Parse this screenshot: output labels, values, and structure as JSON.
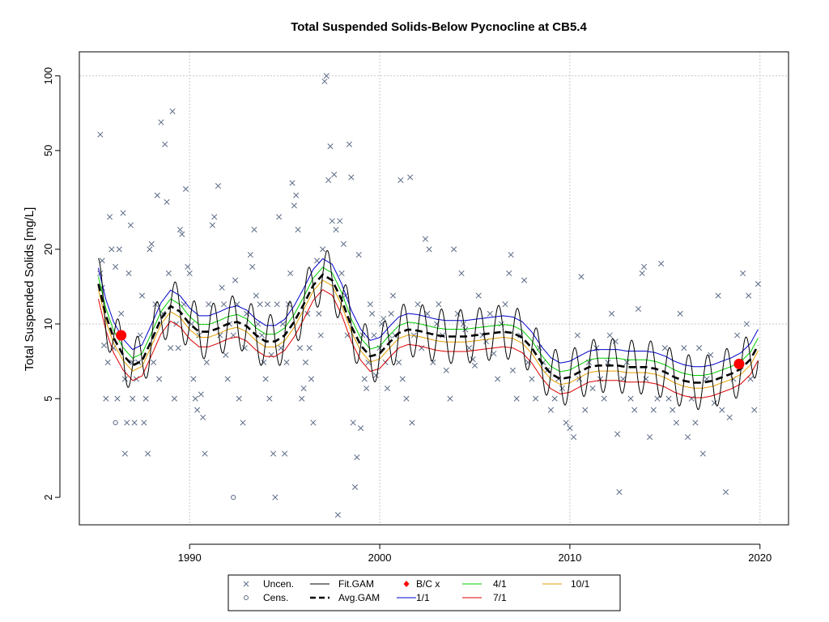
{
  "chart_data": {
    "type": "scatter",
    "title": "Total Suspended Solids-Below Pycnocline at CB5.4",
    "xlabel": "",
    "ylabel": "Total Suspended Solids [mg/L]",
    "x_ticks": [
      1990,
      2000,
      2010,
      2020
    ],
    "y_ticks": [
      2,
      5,
      10,
      20,
      50,
      100
    ],
    "xlim": [
      1984.2,
      2021.5
    ],
    "ylim": [
      1.55,
      125
    ],
    "y_scale": "log",
    "grid": true,
    "legend_position": "bottom",
    "legend": [
      {
        "key": "uncen",
        "label": "Uncen.",
        "symbol": "x",
        "color": "#5b6b86"
      },
      {
        "key": "cens",
        "label": "Cens.",
        "symbol": "o",
        "color": "#5b6b86"
      },
      {
        "key": "fit",
        "label": "Fit.GAM",
        "symbol": "line",
        "color": "#000000"
      },
      {
        "key": "avg",
        "label": "Avg.GAM",
        "symbol": "dash",
        "color": "#000000"
      },
      {
        "key": "bc",
        "label": "B/C x",
        "symbol": "dot",
        "color": "#ff0000"
      },
      {
        "key": "p11",
        "label": "1/1",
        "symbol": "line",
        "color": "#0000cc"
      },
      {
        "key": "p41",
        "label": "4/1",
        "symbol": "line",
        "color": "#00cc00"
      },
      {
        "key": "p71",
        "label": "7/1",
        "symbol": "line",
        "color": "#dd0000"
      },
      {
        "key": "p101",
        "label": "10/1",
        "symbol": "line",
        "color": "#e69f00"
      }
    ],
    "avg_gam": {
      "x": [
        1985.2,
        1985.6,
        1986.0,
        1986.5,
        1987.0,
        1987.5,
        1988.0,
        1988.5,
        1989.0,
        1989.5,
        1990.0,
        1990.5,
        1991.0,
        1991.5,
        1992.0,
        1992.5,
        1993.0,
        1993.5,
        1994.0,
        1994.5,
        1995.0,
        1995.5,
        1996.0,
        1996.5,
        1997.0,
        1997.5,
        1998.0,
        1998.5,
        1999.0,
        1999.5,
        2000.0,
        2000.5,
        2001.0,
        2001.5,
        2002.0,
        2002.5,
        2003.0,
        2003.5,
        2004.0,
        2004.5,
        2005.0,
        2005.5,
        2006.0,
        2006.5,
        2007.0,
        2007.5,
        2008.0,
        2008.5,
        2009.0,
        2009.5,
        2010.0,
        2010.5,
        2011.0,
        2011.5,
        2012.0,
        2012.5,
        2013.0,
        2013.5,
        2014.0,
        2014.5,
        2015.0,
        2015.5,
        2016.0,
        2016.5,
        2017.0,
        2017.5,
        2018.0,
        2018.5,
        2019.0,
        2019.5,
        2019.9
      ],
      "y": [
        14.5,
        10.8,
        8.8,
        7.5,
        6.8,
        7.1,
        8.6,
        10.5,
        11.8,
        11.2,
        10.0,
        9.3,
        9.3,
        9.6,
        10.0,
        10.2,
        9.8,
        9.0,
        8.5,
        8.5,
        9.0,
        10.2,
        12.0,
        14.3,
        15.8,
        15.0,
        12.5,
        9.8,
        8.2,
        7.4,
        7.6,
        8.4,
        9.2,
        9.5,
        9.4,
        9.2,
        9.0,
        8.9,
        8.9,
        8.9,
        9.0,
        9.1,
        9.2,
        9.3,
        9.2,
        8.8,
        8.0,
        7.0,
        6.3,
        6.0,
        6.1,
        6.4,
        6.7,
        6.8,
        6.8,
        6.8,
        6.7,
        6.7,
        6.7,
        6.6,
        6.4,
        6.1,
        5.9,
        5.8,
        5.8,
        5.9,
        6.1,
        6.3,
        6.6,
        7.2,
        8.2
      ]
    },
    "band_factors": {
      "1/1": 1.16,
      "4/1": 1.07,
      "10/1": 0.95,
      "7/1": 0.87
    },
    "fit_gam_seasonal_amplitude": 0.25,
    "bc_x": [
      [
        1986.4,
        9.0
      ],
      [
        2018.9,
        6.9
      ]
    ],
    "cens": [
      [
        1986.1,
        4.0
      ],
      [
        1992.3,
        2.0
      ]
    ],
    "uncen": [
      [
        1985.3,
        58
      ],
      [
        1985.3,
        16
      ],
      [
        1985.4,
        18
      ],
      [
        1985.4,
        14
      ],
      [
        1985.5,
        8.2
      ],
      [
        1985.6,
        5
      ],
      [
        1985.7,
        7
      ],
      [
        1985.8,
        27
      ],
      [
        1985.9,
        20
      ],
      [
        1986.0,
        8
      ],
      [
        1986.1,
        17
      ],
      [
        1986.2,
        5
      ],
      [
        1986.3,
        20
      ],
      [
        1986.4,
        11
      ],
      [
        1986.5,
        28
      ],
      [
        1986.6,
        6
      ],
      [
        1986.6,
        3
      ],
      [
        1986.7,
        4
      ],
      [
        1986.8,
        16
      ],
      [
        1986.9,
        25
      ],
      [
        1987.0,
        5
      ],
      [
        1987.0,
        7
      ],
      [
        1987.1,
        4
      ],
      [
        1987.2,
        6
      ],
      [
        1987.3,
        7
      ],
      [
        1987.4,
        9
      ],
      [
        1987.5,
        13
      ],
      [
        1987.6,
        4
      ],
      [
        1987.7,
        5
      ],
      [
        1987.8,
        3
      ],
      [
        1987.9,
        20
      ],
      [
        1988.0,
        21
      ],
      [
        1988.1,
        7
      ],
      [
        1988.2,
        12
      ],
      [
        1988.3,
        33
      ],
      [
        1988.4,
        6
      ],
      [
        1988.5,
        65
      ],
      [
        1988.6,
        11
      ],
      [
        1988.7,
        53
      ],
      [
        1988.8,
        31
      ],
      [
        1988.9,
        16
      ],
      [
        1989.0,
        8
      ],
      [
        1989.1,
        72
      ],
      [
        1989.2,
        5
      ],
      [
        1989.3,
        10
      ],
      [
        1989.4,
        8
      ],
      [
        1989.5,
        24
      ],
      [
        1989.6,
        23
      ],
      [
        1989.7,
        12
      ],
      [
        1989.8,
        35
      ],
      [
        1989.9,
        17
      ],
      [
        1990.0,
        16
      ],
      [
        1990.1,
        10
      ],
      [
        1990.2,
        6
      ],
      [
        1990.3,
        5
      ],
      [
        1990.4,
        4.5
      ],
      [
        1990.5,
        9
      ],
      [
        1990.6,
        5.2
      ],
      [
        1990.7,
        4.2
      ],
      [
        1990.8,
        3
      ],
      [
        1990.9,
        7
      ],
      [
        1991.0,
        12
      ],
      [
        1991.2,
        25
      ],
      [
        1991.3,
        27
      ],
      [
        1991.5,
        36
      ],
      [
        1991.6,
        9
      ],
      [
        1991.7,
        14
      ],
      [
        1991.8,
        12
      ],
      [
        1991.9,
        7.5
      ],
      [
        1992.0,
        6
      ],
      [
        1992.1,
        10
      ],
      [
        1992.3,
        9
      ],
      [
        1992.4,
        15
      ],
      [
        1992.5,
        12
      ],
      [
        1992.6,
        5
      ],
      [
        1992.8,
        4
      ],
      [
        1992.9,
        8
      ],
      [
        1993.0,
        11
      ],
      [
        1993.2,
        19
      ],
      [
        1993.3,
        17
      ],
      [
        1993.4,
        24
      ],
      [
        1993.5,
        13
      ],
      [
        1993.6,
        10
      ],
      [
        1993.7,
        12
      ],
      [
        1993.8,
        9
      ],
      [
        1993.9,
        7
      ],
      [
        1994.0,
        6
      ],
      [
        1994.1,
        12
      ],
      [
        1994.2,
        5
      ],
      [
        1994.3,
        7.5
      ],
      [
        1994.4,
        3
      ],
      [
        1994.5,
        2
      ],
      [
        1994.6,
        12
      ],
      [
        1994.7,
        27
      ],
      [
        1994.8,
        8
      ],
      [
        1994.9,
        10
      ],
      [
        1995.0,
        3
      ],
      [
        1995.1,
        7
      ],
      [
        1995.2,
        12
      ],
      [
        1995.3,
        16
      ],
      [
        1995.4,
        37
      ],
      [
        1995.5,
        30
      ],
      [
        1995.6,
        33
      ],
      [
        1995.7,
        24
      ],
      [
        1995.8,
        8
      ],
      [
        1995.9,
        5
      ],
      [
        1996.0,
        5.5
      ],
      [
        1996.1,
        7
      ],
      [
        1996.2,
        11
      ],
      [
        1996.3,
        8
      ],
      [
        1996.4,
        6
      ],
      [
        1996.5,
        4
      ],
      [
        1996.7,
        18
      ],
      [
        1996.8,
        11
      ],
      [
        1996.9,
        9
      ],
      [
        1997.0,
        20
      ],
      [
        1997.1,
        95
      ],
      [
        1997.2,
        100
      ],
      [
        1997.3,
        38
      ],
      [
        1997.4,
        52
      ],
      [
        1997.5,
        26
      ],
      [
        1997.6,
        40
      ],
      [
        1997.7,
        24
      ],
      [
        1997.8,
        1.7
      ],
      [
        1997.9,
        26
      ],
      [
        1998.0,
        16
      ],
      [
        1998.1,
        21
      ],
      [
        1998.2,
        13
      ],
      [
        1998.3,
        9
      ],
      [
        1998.4,
        53
      ],
      [
        1998.5,
        39
      ],
      [
        1998.6,
        4
      ],
      [
        1998.7,
        2.2
      ],
      [
        1998.8,
        2.9
      ],
      [
        1998.9,
        19
      ],
      [
        1999.0,
        3.8
      ],
      [
        1999.1,
        9
      ],
      [
        1999.2,
        6
      ],
      [
        1999.3,
        5.5
      ],
      [
        1999.4,
        7
      ],
      [
        1999.5,
        12
      ],
      [
        1999.6,
        11
      ],
      [
        1999.7,
        9
      ],
      [
        1999.8,
        6.2
      ],
      [
        2000.0,
        8
      ],
      [
        2000.1,
        10
      ],
      [
        2000.2,
        10.5
      ],
      [
        2000.3,
        7
      ],
      [
        2000.4,
        5.5
      ],
      [
        2000.5,
        9
      ],
      [
        2000.6,
        11
      ],
      [
        2000.7,
        13
      ],
      [
        2000.8,
        9
      ],
      [
        2001.0,
        7
      ],
      [
        2001.1,
        38
      ],
      [
        2001.2,
        6
      ],
      [
        2001.4,
        5
      ],
      [
        2001.6,
        39
      ],
      [
        2001.7,
        4
      ],
      [
        2001.8,
        9
      ],
      [
        2002.0,
        12
      ],
      [
        2002.2,
        8
      ],
      [
        2002.4,
        22
      ],
      [
        2002.5,
        11
      ],
      [
        2002.6,
        20
      ],
      [
        2002.8,
        7
      ],
      [
        2003.0,
        10
      ],
      [
        2003.1,
        12
      ],
      [
        2003.3,
        9
      ],
      [
        2003.5,
        6.5
      ],
      [
        2003.7,
        5
      ],
      [
        2003.9,
        20
      ],
      [
        2004.1,
        11
      ],
      [
        2004.3,
        16
      ],
      [
        2004.4,
        10
      ],
      [
        2004.5,
        9.5
      ],
      [
        2004.7,
        8
      ],
      [
        2004.9,
        7.2
      ],
      [
        2005.0,
        6.8
      ],
      [
        2005.2,
        13
      ],
      [
        2005.4,
        9
      ],
      [
        2005.6,
        8.5
      ],
      [
        2005.8,
        11
      ],
      [
        2006.0,
        7.6
      ],
      [
        2006.2,
        6
      ],
      [
        2006.4,
        10
      ],
      [
        2006.6,
        12
      ],
      [
        2006.8,
        16
      ],
      [
        2006.9,
        19
      ],
      [
        2007.0,
        6.5
      ],
      [
        2007.2,
        5
      ],
      [
        2007.4,
        9
      ],
      [
        2007.6,
        15
      ],
      [
        2007.8,
        7
      ],
      [
        2008.0,
        6
      ],
      [
        2008.2,
        5
      ],
      [
        2008.4,
        8
      ],
      [
        2008.6,
        7
      ],
      [
        2008.8,
        6.5
      ],
      [
        2009.0,
        4.5
      ],
      [
        2009.2,
        5
      ],
      [
        2009.4,
        6
      ],
      [
        2009.6,
        5.5
      ],
      [
        2009.8,
        4
      ],
      [
        2010.0,
        3.8
      ],
      [
        2010.2,
        3.5
      ],
      [
        2010.4,
        9
      ],
      [
        2010.5,
        6
      ],
      [
        2010.6,
        15.5
      ],
      [
        2010.8,
        4.5
      ],
      [
        2011.0,
        7
      ],
      [
        2011.2,
        5.5
      ],
      [
        2011.4,
        8
      ],
      [
        2011.6,
        6
      ],
      [
        2011.8,
        5
      ],
      [
        2012.0,
        7
      ],
      [
        2012.1,
        9
      ],
      [
        2012.2,
        11
      ],
      [
        2012.4,
        8.5
      ],
      [
        2012.5,
        3.6
      ],
      [
        2012.6,
        2.1
      ],
      [
        2012.8,
        6
      ],
      [
        2013.0,
        7
      ],
      [
        2013.2,
        5
      ],
      [
        2013.4,
        4.5
      ],
      [
        2013.6,
        11.5
      ],
      [
        2013.8,
        16
      ],
      [
        2013.9,
        17
      ],
      [
        2014.0,
        6
      ],
      [
        2014.2,
        3.5
      ],
      [
        2014.4,
        4.5
      ],
      [
        2014.6,
        5
      ],
      [
        2014.8,
        17.5
      ],
      [
        2015.0,
        8
      ],
      [
        2015.2,
        5
      ],
      [
        2015.4,
        4.5
      ],
      [
        2015.6,
        4
      ],
      [
        2015.8,
        11
      ],
      [
        2016.0,
        8
      ],
      [
        2016.2,
        3.5
      ],
      [
        2016.4,
        5
      ],
      [
        2016.6,
        4
      ],
      [
        2016.8,
        8
      ],
      [
        2017.0,
        3
      ],
      [
        2017.2,
        6
      ],
      [
        2017.4,
        7.5
      ],
      [
        2017.6,
        4.8
      ],
      [
        2017.8,
        13
      ],
      [
        2018.0,
        4.5
      ],
      [
        2018.2,
        2.1
      ],
      [
        2018.4,
        4.2
      ],
      [
        2018.6,
        6
      ],
      [
        2018.8,
        9
      ],
      [
        2019.0,
        7
      ],
      [
        2019.1,
        16
      ],
      [
        2019.3,
        10
      ],
      [
        2019.4,
        13
      ],
      [
        2019.5,
        6
      ],
      [
        2019.7,
        4.5
      ],
      [
        2019.9,
        14.5
      ]
    ]
  }
}
